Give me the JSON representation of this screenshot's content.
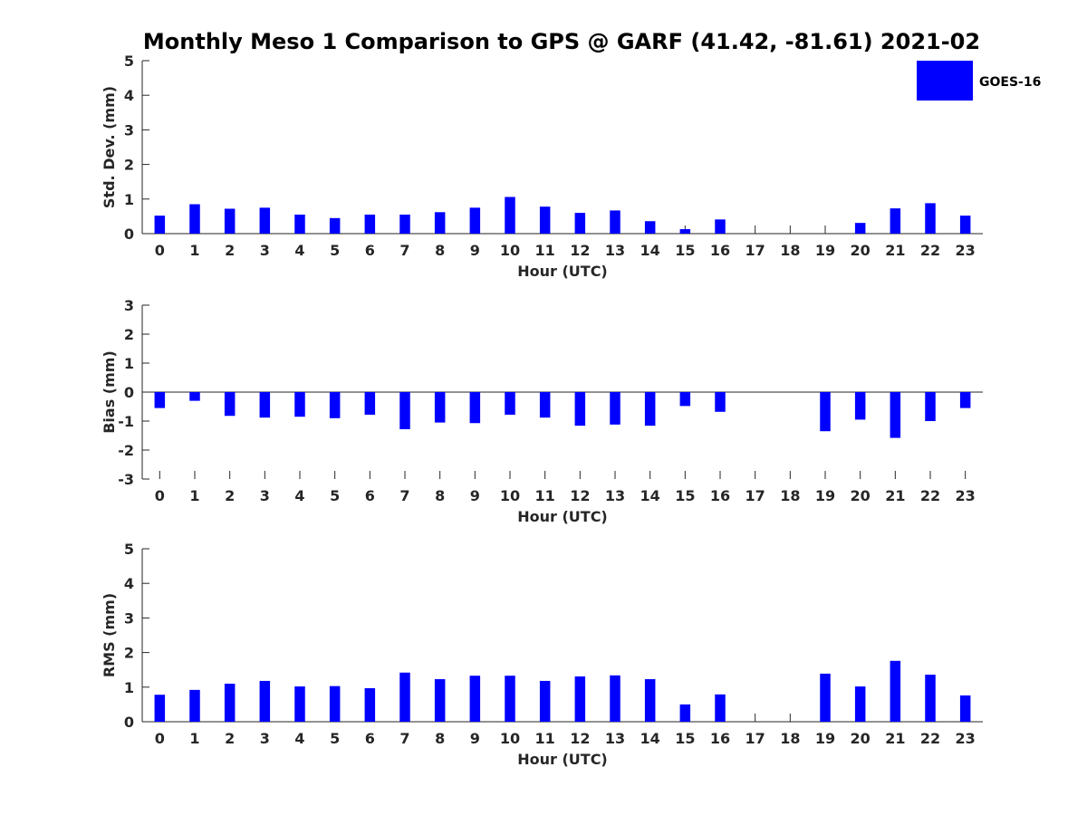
{
  "chart_data": {
    "title": "Monthly Meso 1 Comparison to GPS @ GARF (41.42, -81.61) 2021-02",
    "legend": {
      "label": "GOES-16",
      "color": "#0000ff",
      "placement": "top-right"
    },
    "hours": [
      "0",
      "1",
      "2",
      "3",
      "4",
      "5",
      "6",
      "7",
      "8",
      "9",
      "10",
      "11",
      "12",
      "13",
      "14",
      "15",
      "16",
      "17",
      "18",
      "19",
      "20",
      "21",
      "22",
      "23"
    ],
    "panels": [
      {
        "type": "bar",
        "xlabel": "Hour (UTC)",
        "ylabel": "Std. Dev. (mm)",
        "ylim": [
          0,
          5
        ],
        "yticks": [
          "0",
          "1",
          "2",
          "3",
          "4",
          "5"
        ],
        "values": [
          0.52,
          0.85,
          0.72,
          0.75,
          0.55,
          0.45,
          0.55,
          0.55,
          0.62,
          0.75,
          1.06,
          0.78,
          0.6,
          0.67,
          0.36,
          0.13,
          0.41,
          null,
          null,
          null,
          0.31,
          0.73,
          0.88,
          0.52
        ]
      },
      {
        "type": "bar",
        "xlabel": "Hour (UTC)",
        "ylabel": "Bias (mm)",
        "ylim": [
          -3,
          3
        ],
        "yticks": [
          "-3",
          "-2",
          "-1",
          "0",
          "1",
          "2",
          "3"
        ],
        "values": [
          -0.55,
          -0.3,
          -0.82,
          -0.88,
          -0.85,
          -0.9,
          -0.78,
          -1.28,
          -1.05,
          -1.07,
          -0.78,
          -0.88,
          -1.16,
          -1.12,
          -1.16,
          -0.48,
          -0.68,
          null,
          null,
          -1.35,
          -0.95,
          -1.58,
          -1.0,
          -0.55
        ]
      },
      {
        "type": "bar",
        "xlabel": "Hour (UTC)",
        "ylabel": "RMS (mm)",
        "ylim": [
          0,
          5
        ],
        "yticks": [
          "0",
          "1",
          "2",
          "3",
          "4",
          "5"
        ],
        "values": [
          0.78,
          0.92,
          1.1,
          1.18,
          1.02,
          1.03,
          0.97,
          1.42,
          1.23,
          1.33,
          1.33,
          1.18,
          1.31,
          1.34,
          1.23,
          0.5,
          0.79,
          null,
          null,
          1.39,
          1.02,
          1.76,
          1.36,
          0.76
        ]
      }
    ]
  }
}
